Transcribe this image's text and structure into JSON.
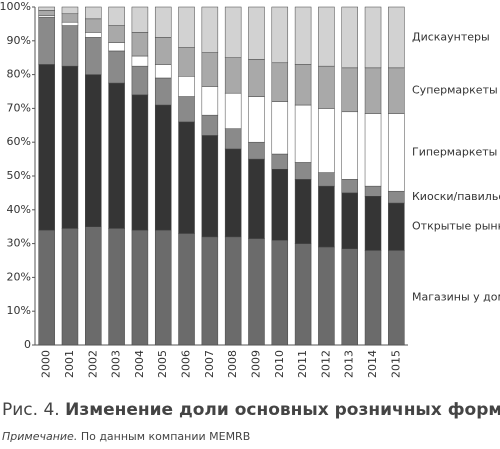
{
  "chart_data": {
    "type": "stacked_bar_100",
    "categories": [
      "2000",
      "2001",
      "2002",
      "2003",
      "2004",
      "2005",
      "2006",
      "2007",
      "2008",
      "2009",
      "2010",
      "2011",
      "2012",
      "2013",
      "2014",
      "2015"
    ],
    "ylim": [
      0,
      100
    ],
    "yticks": [
      0,
      {
        "value": 10,
        "label": "10%"
      },
      {
        "value": 20,
        "label": "20%"
      },
      {
        "value": 30,
        "label": "30%"
      },
      {
        "value": 40,
        "label": "40%"
      },
      {
        "value": 50,
        "label": "50%"
      },
      {
        "value": 60,
        "label": "60%"
      },
      {
        "value": 70,
        "label": "70%"
      },
      {
        "value": 80,
        "label": "80%"
      },
      {
        "value": 90,
        "label": "90%"
      },
      {
        "value": 100,
        "label": "100%"
      }
    ],
    "series": [
      {
        "name": "Магазины у дома",
        "color": "#6b6b6b",
        "values": [
          34,
          34.5,
          35,
          34.5,
          34,
          34,
          33,
          32,
          32,
          31.5,
          31,
          30,
          29,
          28.5,
          28,
          28
        ]
      },
      {
        "name": "Открытые рынки",
        "color": "#353535",
        "values": [
          49,
          48,
          45,
          43,
          40,
          37,
          33,
          30,
          26,
          23.5,
          21,
          19,
          18,
          16.5,
          16,
          14
        ]
      },
      {
        "name": "Киоски/павильоны",
        "color": "#8a8a8a",
        "values": [
          14,
          12,
          11,
          9.5,
          8.5,
          8,
          7.5,
          6,
          6,
          5,
          4.5,
          5,
          4,
          4,
          3,
          3.5
        ]
      },
      {
        "name": "Гипермаркеты",
        "color": "#ffffff",
        "values": [
          0.5,
          1,
          1.5,
          2.5,
          3,
          4,
          6,
          8.5,
          10.5,
          13.5,
          15.5,
          17,
          19,
          20,
          21.5,
          23
        ]
      },
      {
        "name": "Супермаркеты",
        "color": "#a9a9a9",
        "values": [
          1.5,
          2.5,
          4,
          5,
          7,
          8,
          8.5,
          10,
          10.5,
          11,
          11.5,
          12,
          12.5,
          13,
          13.5,
          13.5
        ]
      },
      {
        "name": "Дискаунтеры",
        "color": "#d2d2d2",
        "values": [
          1,
          2,
          3.5,
          5.5,
          7.5,
          9,
          12,
          13.5,
          15,
          15.5,
          16.5,
          17,
          17.5,
          18,
          18,
          18
        ]
      }
    ]
  },
  "caption": {
    "label": "Рис. 4.",
    "title": "Изменение доли основных розничных форматов"
  },
  "note": {
    "label": "Примечание.",
    "text": "По данным компании MEMRB"
  }
}
